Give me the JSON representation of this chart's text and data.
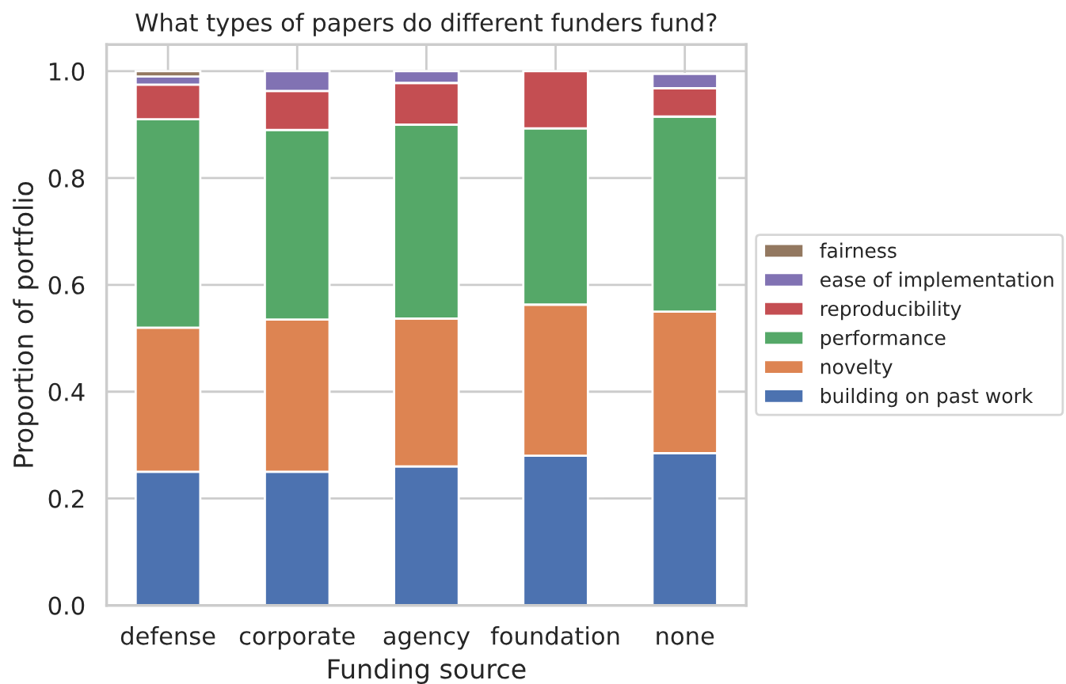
{
  "chart_data": {
    "type": "bar",
    "stacked": true,
    "title": "What types of papers do different funders fund?",
    "xlabel": "Funding source",
    "ylabel": "Proportion of portfolio",
    "categories": [
      "defense",
      "corporate",
      "agency",
      "foundation",
      "none"
    ],
    "series": [
      {
        "name": "building on past work",
        "color": "#4c72b0",
        "values": [
          0.25,
          0.25,
          0.26,
          0.28,
          0.285
        ]
      },
      {
        "name": "novelty",
        "color": "#dd8452",
        "values": [
          0.27,
          0.285,
          0.277,
          0.283,
          0.265
        ]
      },
      {
        "name": "performance",
        "color": "#55a868",
        "values": [
          0.39,
          0.355,
          0.363,
          0.33,
          0.365
        ]
      },
      {
        "name": "reproducibility",
        "color": "#c44e52",
        "values": [
          0.065,
          0.073,
          0.078,
          0.107,
          0.053
        ]
      },
      {
        "name": "ease of implementation",
        "color": "#8172b3",
        "values": [
          0.015,
          0.037,
          0.022,
          null,
          0.027
        ]
      },
      {
        "name": "fairness",
        "color": "#937860",
        "values": [
          0.01,
          null,
          null,
          null,
          null
        ]
      }
    ],
    "ylim": [
      0,
      1.05
    ],
    "yticks": [
      {
        "value": 0,
        "label": "0.0"
      },
      0.2,
      0.4,
      0.6,
      0.8,
      {
        "value": 1,
        "label": "1.0"
      }
    ],
    "grid": true,
    "legend": "right"
  }
}
